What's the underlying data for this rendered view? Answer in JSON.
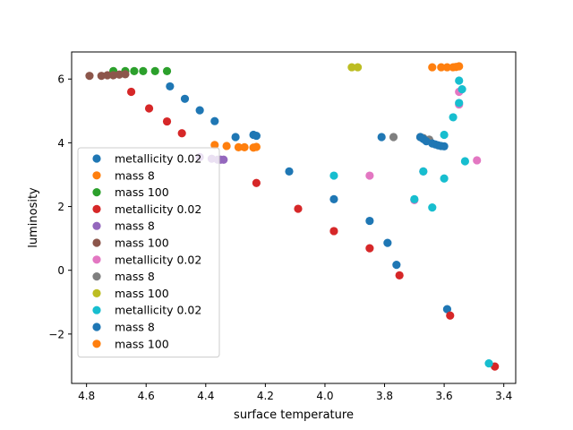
{
  "chart_data": {
    "type": "scatter",
    "title": "",
    "xlabel": "surface temperature",
    "ylabel": "luminosity",
    "xlim": [
      4.85,
      3.36
    ],
    "ylim": [
      -3.55,
      6.85
    ],
    "x_inverted": true,
    "grid": false,
    "legend_position": "lower-left",
    "xticks": [
      4.8,
      4.6,
      4.4,
      4.2,
      4.0,
      3.8,
      3.6,
      3.4
    ],
    "xtick_labels": [
      "4.8",
      "4.6",
      "4.4",
      "4.2",
      "4.0",
      "3.8",
      "3.6",
      "3.4"
    ],
    "yticks": [
      -2,
      0,
      2,
      4,
      6
    ],
    "ytick_labels": [
      "−2",
      "0",
      "2",
      "4",
      "6"
    ],
    "series": [
      {
        "name": "metallicity 0.02",
        "color": "#1f77b4",
        "points": [
          [
            4.52,
            5.77
          ],
          [
            4.47,
            5.38
          ],
          [
            4.42,
            5.02
          ],
          [
            4.37,
            4.68
          ],
          [
            4.3,
            4.18
          ],
          [
            4.24,
            4.25
          ],
          [
            4.23,
            4.22
          ],
          [
            4.12,
            3.1
          ],
          [
            3.97,
            2.23
          ],
          [
            3.85,
            1.55
          ],
          [
            3.79,
            0.86
          ],
          [
            3.76,
            0.17
          ],
          [
            3.59,
            -1.22
          ]
        ]
      },
      {
        "name": "mass 8",
        "color": "#ff7f0e",
        "points": [
          [
            4.37,
            3.93
          ],
          [
            4.33,
            3.9
          ],
          [
            4.29,
            3.86
          ],
          [
            4.27,
            3.86
          ],
          [
            4.24,
            3.85
          ],
          [
            4.23,
            3.87
          ]
        ]
      },
      {
        "name": "mass 100",
        "color": "#2ca02c",
        "points": [
          [
            4.71,
            6.25
          ],
          [
            4.67,
            6.25
          ],
          [
            4.64,
            6.25
          ],
          [
            4.61,
            6.25
          ],
          [
            4.57,
            6.25
          ],
          [
            4.53,
            6.25
          ]
        ]
      },
      {
        "name": "metallicity 0.02",
        "color": "#d62728",
        "points": [
          [
            4.65,
            5.6
          ],
          [
            4.59,
            5.08
          ],
          [
            4.53,
            4.67
          ],
          [
            4.48,
            4.3
          ],
          [
            4.23,
            2.74
          ],
          [
            4.09,
            1.93
          ],
          [
            3.97,
            1.23
          ],
          [
            3.85,
            0.69
          ],
          [
            3.75,
            -0.16
          ],
          [
            3.58,
            -1.42
          ],
          [
            3.43,
            -3.02
          ]
        ]
      },
      {
        "name": "mass 8",
        "color": "#9467bd",
        "points": [
          [
            4.42,
            3.55
          ],
          [
            4.38,
            3.5
          ],
          [
            4.36,
            3.47
          ],
          [
            4.35,
            3.47
          ],
          [
            4.34,
            3.47
          ]
        ]
      },
      {
        "name": "mass 100",
        "color": "#8c564b",
        "points": [
          [
            4.79,
            6.1
          ],
          [
            4.75,
            6.1
          ],
          [
            4.73,
            6.12
          ],
          [
            4.71,
            6.12
          ],
          [
            4.69,
            6.14
          ],
          [
            4.67,
            6.15
          ]
        ]
      },
      {
        "name": "metallicity 0.02",
        "color": "#e377c2",
        "points": [
          [
            3.55,
            5.6
          ],
          [
            3.55,
            5.2
          ],
          [
            3.67,
            3.1
          ],
          [
            3.49,
            3.45
          ],
          [
            3.85,
            2.97
          ],
          [
            3.7,
            2.2
          ]
        ]
      },
      {
        "name": "mass 8",
        "color": "#7f7f7f",
        "points": [
          [
            3.77,
            4.18
          ],
          [
            3.68,
            4.18
          ],
          [
            3.67,
            4.15
          ],
          [
            3.65,
            4.1
          ]
        ]
      },
      {
        "name": "mass 100",
        "color": "#bcbd22",
        "points": [
          [
            3.91,
            6.37
          ],
          [
            3.89,
            6.37
          ]
        ]
      },
      {
        "name": "metallicity 0.02",
        "color": "#17becf",
        "points": [
          [
            3.55,
            5.95
          ],
          [
            3.54,
            5.68
          ],
          [
            3.55,
            5.25
          ],
          [
            3.57,
            4.8
          ],
          [
            3.6,
            4.25
          ],
          [
            3.53,
            3.42
          ],
          [
            3.67,
            3.1
          ],
          [
            3.97,
            2.97
          ],
          [
            3.6,
            2.88
          ],
          [
            3.7,
            2.23
          ],
          [
            3.64,
            1.97
          ],
          [
            3.45,
            -2.92
          ]
        ]
      },
      {
        "name": "mass 8",
        "color": "#1f77b4",
        "points": [
          [
            3.81,
            4.18
          ],
          [
            3.68,
            4.18
          ],
          [
            3.67,
            4.12
          ],
          [
            3.66,
            4.05
          ],
          [
            3.64,
            3.98
          ],
          [
            3.63,
            3.95
          ],
          [
            3.62,
            3.92
          ],
          [
            3.61,
            3.9
          ],
          [
            3.6,
            3.89
          ]
        ]
      },
      {
        "name": "mass 100",
        "color": "#ff7f0e",
        "points": [
          [
            3.64,
            6.37
          ],
          [
            3.61,
            6.37
          ],
          [
            3.59,
            6.37
          ],
          [
            3.57,
            6.37
          ],
          [
            3.56,
            6.38
          ],
          [
            3.55,
            6.4
          ]
        ]
      }
    ]
  }
}
